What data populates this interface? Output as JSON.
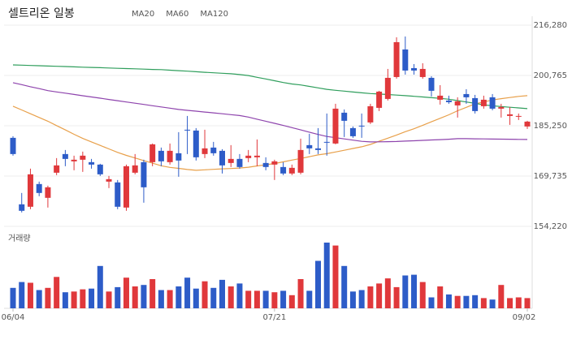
{
  "chart_data": {
    "type": "candlestick",
    "title": "셀트리온 일봉",
    "categories": [
      "06/04",
      null,
      null,
      null,
      null,
      null,
      null,
      null,
      null,
      null,
      null,
      null,
      null,
      null,
      null,
      null,
      null,
      null,
      null,
      null,
      null,
      null,
      null,
      null,
      null,
      null,
      null,
      null,
      null,
      null,
      "07/21",
      null,
      null,
      null,
      null,
      null,
      null,
      null,
      null,
      null,
      null,
      null,
      null,
      null,
      null,
      null,
      null,
      null,
      null,
      null,
      null,
      null,
      null,
      null,
      null,
      null,
      null,
      null,
      null,
      "09/02"
    ],
    "up_color": "#e0383b",
    "down_color": "#2d5cc8",
    "open": [
      181530,
      161030,
      160280,
      167280,
      163030,
      170780,
      176530,
      174280,
      174780,
      174030,
      173280,
      168030,
      167780,
      160030,
      170780,
      174030,
      174030,
      177530,
      174030,
      176780,
      184030,
      183780,
      176530,
      178530,
      177530,
      173780,
      175030,
      175280,
      175530,
      173780,
      173280,
      172530,
      170530,
      170780,
      179280,
      178280,
      180280,
      179780,
      189280,
      184530,
      185280,
      186280,
      190780,
      193530,
      200280,
      208780,
      203030,
      200280,
      200030,
      193280,
      193030,
      191530,
      195030,
      193780,
      191280,
      194030,
      190530,
      188280,
      188030,
      185030
    ],
    "high": [
      182030,
      164530,
      172030,
      168030,
      166780,
      175280,
      177780,
      176030,
      177280,
      175030,
      173530,
      169780,
      168530,
      173280,
      176530,
      174780,
      179780,
      178530,
      179780,
      183280,
      188280,
      184530,
      184030,
      180280,
      178030,
      179280,
      176530,
      177780,
      181030,
      175530,
      174780,
      174030,
      173280,
      181280,
      182780,
      184530,
      189030,
      192030,
      190280,
      185030,
      189030,
      192030,
      196030,
      202780,
      212530,
      212780,
      204280,
      204530,
      200530,
      197780,
      194530,
      194030,
      196530,
      194780,
      194530,
      195030,
      192030,
      191030,
      189030,
      186780
    ],
    "low": [
      176030,
      158530,
      159530,
      163530,
      160030,
      170030,
      172780,
      171530,
      171030,
      172030,
      169780,
      166030,
      159530,
      159030,
      170280,
      161530,
      172780,
      172780,
      173280,
      169530,
      176530,
      174530,
      175280,
      176030,
      170530,
      172530,
      172030,
      174030,
      172780,
      171530,
      168530,
      170030,
      170030,
      170280,
      176530,
      176530,
      176030,
      179530,
      181780,
      181530,
      181530,
      185780,
      189780,
      193030,
      199780,
      201030,
      201030,
      199780,
      194280,
      191780,
      192030,
      187780,
      192030,
      189030,
      190530,
      190030,
      187780,
      185530,
      187030,
      184280
    ],
    "close": [
      176530,
      159030,
      170280,
      164530,
      166280,
      173030,
      175030,
      174780,
      176030,
      173280,
      170280,
      168780,
      160280,
      172780,
      173030,
      166280,
      179530,
      174280,
      177530,
      174530,
      183780,
      175530,
      178280,
      176780,
      173030,
      175030,
      172530,
      176030,
      176030,
      172530,
      174280,
      170530,
      172280,
      177780,
      178280,
      177780,
      180030,
      190530,
      186780,
      182030,
      185030,
      191280,
      195780,
      200030,
      211030,
      202280,
      202280,
      202780,
      196030,
      194530,
      192530,
      192780,
      194030,
      189780,
      193280,
      190530,
      191030,
      188780,
      188280,
      186530
    ],
    "series": [
      {
        "name": "MA20",
        "color": "#e8a04a",
        "values": [
          191280,
          190130,
          188960,
          187810,
          186660,
          185300,
          183980,
          182630,
          181360,
          180280,
          179210,
          178130,
          177060,
          176110,
          175310,
          174510,
          173710,
          172910,
          172430,
          172110,
          171760,
          171530,
          171680,
          171810,
          171960,
          172080,
          172210,
          172480,
          172860,
          173230,
          173610,
          174110,
          174660,
          175180,
          175730,
          176260,
          176660,
          177180,
          177710,
          178260,
          178780,
          179510,
          180480,
          181430,
          182410,
          183430,
          184330,
          185410,
          186480,
          187560,
          188630,
          189880,
          190930,
          192010,
          192580,
          193210,
          193610,
          193960,
          194310,
          194530
        ]
      },
      {
        "name": "MA60",
        "color": "#8e44ad",
        "values": [
          198530,
          197930,
          197300,
          196710,
          196100,
          195680,
          195300,
          194900,
          194500,
          194130,
          193760,
          193360,
          192980,
          192580,
          192200,
          191830,
          191430,
          191060,
          190680,
          190280,
          190000,
          189750,
          189480,
          189230,
          188960,
          188680,
          188400,
          187930,
          187280,
          186650,
          186010,
          185350,
          184680,
          183980,
          183280,
          182580,
          181950,
          181580,
          181210,
          180830,
          180460,
          180280,
          180310,
          180360,
          180410,
          180530,
          180630,
          180750,
          180880,
          180980,
          181110,
          181280,
          181280,
          181230,
          181210,
          181160,
          181130,
          181110,
          181060,
          181030
        ]
      },
      {
        "name": "MA120",
        "color": "#2f9e5c",
        "values": [
          204030,
          203940,
          203850,
          203770,
          203680,
          203600,
          203510,
          203430,
          203330,
          203250,
          203160,
          203080,
          202980,
          202900,
          202810,
          202730,
          202630,
          202560,
          202400,
          202230,
          202080,
          201910,
          201750,
          201580,
          201430,
          201280,
          201030,
          200750,
          200200,
          199680,
          199130,
          198600,
          198150,
          197830,
          197400,
          196950,
          196480,
          196200,
          195930,
          195650,
          195400,
          195180,
          195030,
          194880,
          194700,
          194530,
          194330,
          194130,
          193910,
          193710,
          193430,
          193000,
          192580,
          192150,
          191700,
          191400,
          191180,
          190950,
          190750,
          190530
        ]
      }
    ],
    "ylim": [
      153230,
      219030
    ],
    "yticks": [
      {
        "value": 216280,
        "label": "216,280"
      },
      {
        "value": 200765,
        "label": "200,765"
      },
      {
        "value": 185250,
        "label": "185,250"
      },
      {
        "value": 169735,
        "label": "169,735"
      },
      {
        "value": 154220,
        "label": "154,220"
      }
    ],
    "grid": true,
    "volume": {
      "label": "거래량",
      "ylim": [
        0,
        100
      ],
      "values": [
        28,
        36,
        35,
        25,
        28,
        43,
        22,
        23,
        26,
        27,
        58,
        23,
        29,
        42,
        30,
        32,
        40,
        25,
        25,
        30,
        42,
        27,
        37,
        28,
        39,
        30,
        34,
        24,
        24,
        24,
        22,
        24,
        18,
        40,
        24,
        65,
        90,
        86,
        58,
        23,
        25,
        30,
        34,
        41,
        29,
        45,
        46,
        36,
        15,
        30,
        19,
        17,
        17,
        18,
        14,
        12,
        32,
        14,
        15,
        14
      ]
    }
  }
}
